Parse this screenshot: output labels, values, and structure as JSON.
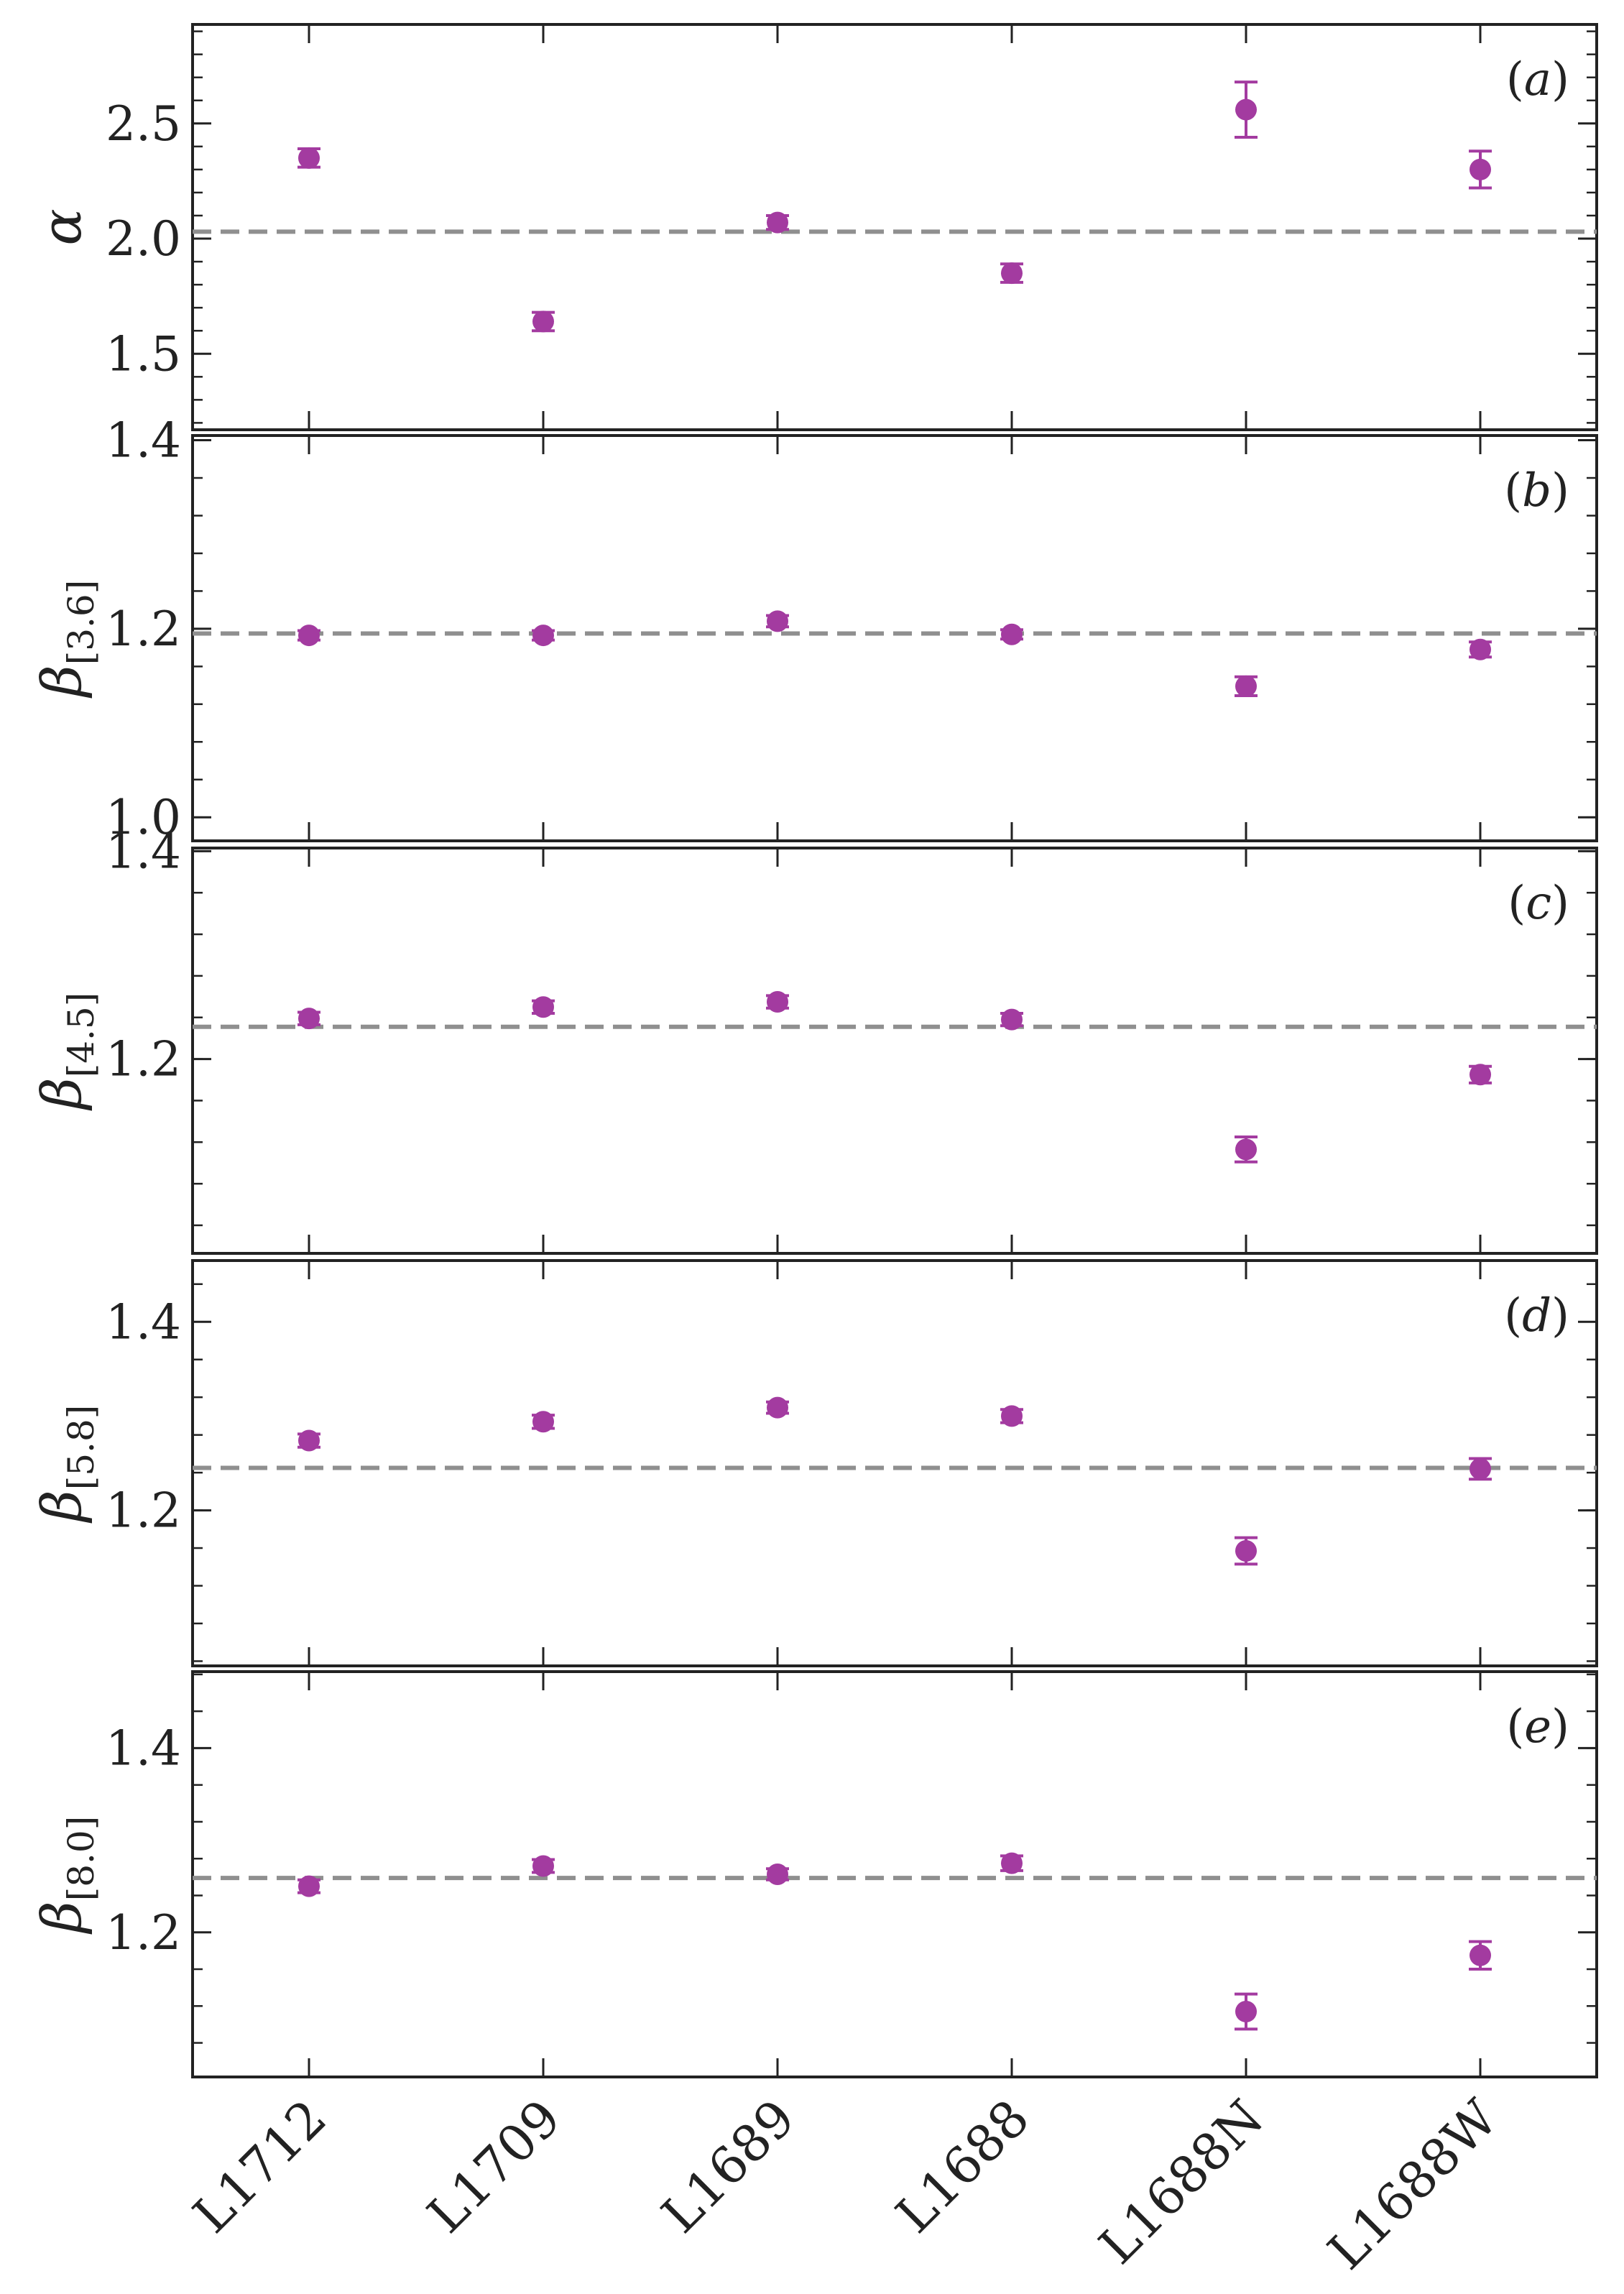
{
  "chart_data": {
    "type": "scatter",
    "categories": [
      "L1712",
      "L1709",
      "L1689",
      "L1688",
      "L1688N",
      "L1688W"
    ],
    "colors": {
      "marker": "#a33ba0",
      "reference_line": "#8f8f8f",
      "axis": "#222222"
    },
    "panels": [
      {
        "tag": "a",
        "ylabel": "α",
        "ylabel_sub": "",
        "ylim": [
          1.17,
          2.93
        ],
        "yticks": [
          1.5,
          2.0,
          2.5
        ],
        "ytick_labels": [
          "1.5",
          "2.0",
          "2.5"
        ],
        "reference_line": 2.03,
        "values": [
          2.35,
          1.64,
          2.07,
          1.85,
          2.56,
          2.3
        ],
        "errors": [
          0.04,
          0.04,
          0.03,
          0.04,
          0.12,
          0.08
        ]
      },
      {
        "tag": "b",
        "ylabel": "β",
        "ylabel_sub": "[3.6]",
        "ylim": [
          0.975,
          1.405
        ],
        "yticks": [
          1.0,
          1.2,
          1.4
        ],
        "ytick_labels": [
          "1.0",
          "1.2",
          "1.4"
        ],
        "reference_line": 1.195,
        "values": [
          1.193,
          1.193,
          1.208,
          1.194,
          1.139,
          1.178
        ],
        "errors": [
          0.005,
          0.005,
          0.006,
          0.005,
          0.01,
          0.008
        ]
      },
      {
        "tag": "c",
        "ylabel": "β",
        "ylabel_sub": "[4.5]",
        "ylim": [
          1.013,
          1.403
        ],
        "yticks": [
          1.2,
          1.4
        ],
        "ytick_labels": [
          "1.2",
          "1.4"
        ],
        "reference_line": 1.231,
        "values": [
          1.239,
          1.25,
          1.255,
          1.238,
          1.113,
          1.185
        ],
        "errors": [
          0.006,
          0.006,
          0.006,
          0.006,
          0.012,
          0.008
        ]
      },
      {
        "tag": "d",
        "ylabel": "β",
        "ylabel_sub": "[5.8]",
        "ylim": [
          1.035,
          1.465
        ],
        "yticks": [
          1.2,
          1.4
        ],
        "ytick_labels": [
          "1.2",
          "1.4"
        ],
        "reference_line": 1.245,
        "values": [
          1.274,
          1.294,
          1.309,
          1.3,
          1.157,
          1.244
        ],
        "errors": [
          0.007,
          0.007,
          0.006,
          0.007,
          0.014,
          0.011
        ]
      },
      {
        "tag": "e",
        "ylabel": "β",
        "ylabel_sub": "[8.0]",
        "ylim": [
          1.043,
          1.483
        ],
        "yticks": [
          1.2,
          1.4
        ],
        "ytick_labels": [
          "1.2",
          "1.4"
        ],
        "reference_line": 1.259,
        "values": [
          1.25,
          1.272,
          1.263,
          1.275,
          1.114,
          1.175
        ],
        "errors": [
          0.007,
          0.007,
          0.006,
          0.008,
          0.019,
          0.015
        ]
      }
    ]
  }
}
